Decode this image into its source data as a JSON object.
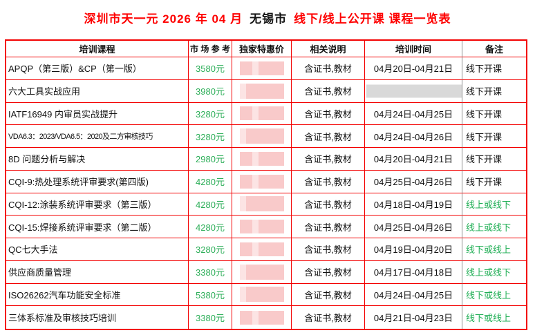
{
  "title": {
    "part1": "深圳市天一元 2026 年 04 月",
    "part2": "无锡市",
    "part3": "线下/线上公开课 课程一览表"
  },
  "colors": {
    "title_red": "#fe0000",
    "grid_red": "#f30000",
    "price_green": "#2cae58",
    "note_green": "#1fae54",
    "redaction_pink": "#f9caca",
    "redaction_pink_light": "#fce4e4",
    "redaction_gray": "#d9d9d9",
    "column_divider_gray": "#8c8c8c"
  },
  "table": {
    "headers": [
      "培训课程",
      "市 场 参 考",
      "独家特惠价",
      "相关说明",
      "培训时间",
      "备注"
    ],
    "rows": [
      {
        "course": "APQP（第三版）&CP（第一版）",
        "price": "3580元",
        "special_price_redacted": true,
        "desc": "含证书,教材",
        "time": "04月20日-04月21日",
        "time_redacted": false,
        "note": "线下开课"
      },
      {
        "course": "六大工具实战应用",
        "price": "3980元",
        "special_price_redacted": true,
        "desc": "含证书,教材",
        "time": "",
        "time_redacted": true,
        "note": "线下开课"
      },
      {
        "course": "IATF16949 内审员实战提升",
        "price": "3280元",
        "special_price_redacted": true,
        "desc": "含证书,教材",
        "time": "04月24日-04月25日",
        "time_redacted": false,
        "note": "线下开课"
      },
      {
        "course": "VDA6.3：2023/VDA6.5：2020及二方审核技巧",
        "price": "3280元",
        "special_price_redacted": true,
        "desc": "含证书,教材",
        "time": "04月24日-04月26日",
        "time_redacted": false,
        "note": "线下开课"
      },
      {
        "course": "8D 问题分析与解决",
        "price": "2980元",
        "special_price_redacted": true,
        "desc": "含证书,教材",
        "time": "04月20日-04月21日",
        "time_redacted": false,
        "note": "线下开课"
      },
      {
        "course": "CQI-9:热处理系统评审要求(第四版)",
        "price": "4280元",
        "special_price_redacted": true,
        "desc": "含证书,教材",
        "time": "04月25日-04月26日",
        "time_redacted": false,
        "note": "线下开课"
      },
      {
        "course": "CQI-12:涂装系统评审要求（第三版）",
        "price": "4280元",
        "special_price_redacted": true,
        "desc": "含证书,教材",
        "time": "04月18日-04月19日",
        "time_redacted": false,
        "note": "线上或线下"
      },
      {
        "course": "CQI-15:焊接系统评审要求（第二版）",
        "price": "4280元",
        "special_price_redacted": true,
        "desc": "含证书,教材",
        "time": "04月25日-04月26日",
        "time_redacted": false,
        "note": "线上或线下"
      },
      {
        "course": "QC七大手法",
        "price": "3280元",
        "special_price_redacted": true,
        "desc": "含证书,教材",
        "time": "04月19日-04月20日",
        "time_redacted": false,
        "note": "线下或线上"
      },
      {
        "course": "供应商质量管理",
        "price": "3380元",
        "special_price_redacted": true,
        "desc": "含证书,教材",
        "time": "04月17日-04月18日",
        "time_redacted": false,
        "note": "线上或线下"
      },
      {
        "course": "ISO26262汽车功能安全标准",
        "price": "5380元",
        "special_price_redacted": true,
        "desc": "含证书,教材",
        "time": "04月24日-04月25日",
        "time_redacted": false,
        "note": "线下或线上"
      },
      {
        "course": "三体系标准及审核技巧培训",
        "price": "3380元",
        "special_price_redacted": true,
        "desc": "含证书,教材",
        "time": "04月21日-04月23日",
        "time_redacted": false,
        "note": "线下或线上"
      }
    ]
  }
}
